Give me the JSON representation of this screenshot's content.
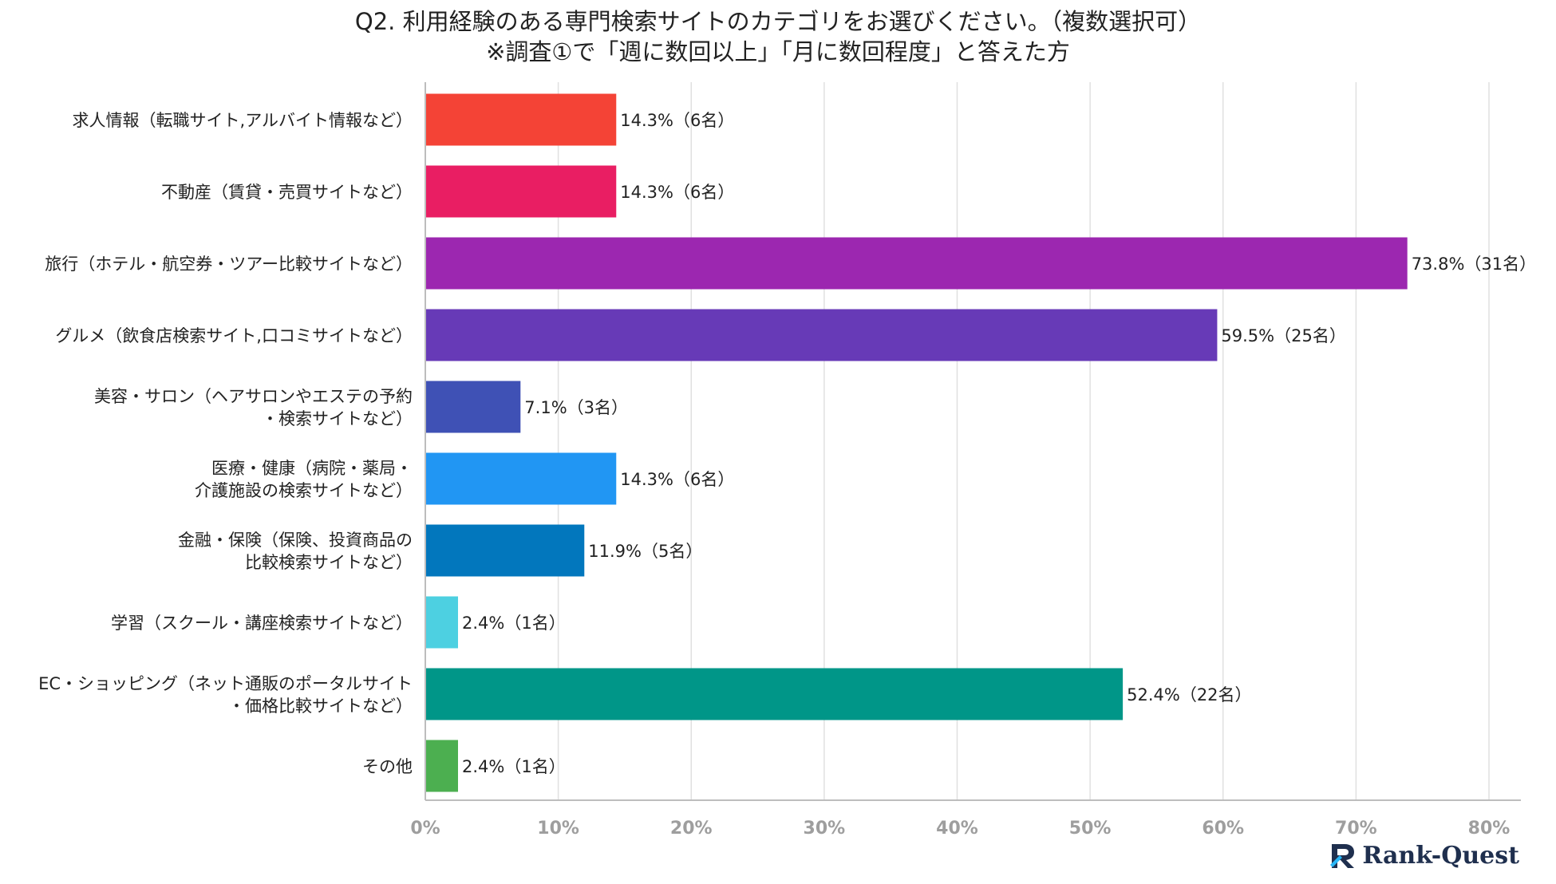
{
  "chart_data": {
    "type": "bar",
    "orientation": "horizontal",
    "title": "Q2. 利用経験のある専門検索サイトのカテゴリをお選びください。（複数選択可）",
    "subtitle": "※調査①で「週に数回以上」「月に数回程度」と答えた方",
    "categories": [
      [
        "求人情報（転職サイト,アルバイト情報など）"
      ],
      [
        "不動産（賃貸・売買サイトなど）"
      ],
      [
        "旅行（ホテル・航空券・ツアー比較サイトなど）"
      ],
      [
        "グルメ（飲食店検索サイト,口コミサイトなど）"
      ],
      [
        "美容・サロン（ヘアサロンやエステの予約",
        "・検索サイトなど）"
      ],
      [
        "医療・健康（病院・薬局・",
        "介護施設の検索サイトなど）"
      ],
      [
        "金融・保険（保険、投資商品の",
        "比較検索サイトなど）"
      ],
      [
        "学習（スクール・講座検索サイトなど）"
      ],
      [
        "EC・ショッピング（ネット通販のポータルサイト",
        "・価格比較サイトなど）"
      ],
      [
        "その他"
      ]
    ],
    "values": [
      14.3,
      14.3,
      73.8,
      59.5,
      7.1,
      14.3,
      11.9,
      2.4,
      52.4,
      2.4
    ],
    "data_labels": [
      "14.3%（6名）",
      "14.3%（6名）",
      "73.8%（31名）",
      "59.5%（25名）",
      "7.1%（3名）",
      "14.3%（6名）",
      "11.9%（5名）",
      "2.4%（1名）",
      "52.4%（22名）",
      "2.4%（1名）"
    ],
    "colors": [
      "#f44336",
      "#e91e63",
      "#9c27b0",
      "#673ab7",
      "#3f51b5",
      "#2196f3",
      "#0277bd",
      "#4dd0e1",
      "#009688",
      "#4caf50"
    ],
    "xlim": [
      0,
      80
    ],
    "xticks": [
      0,
      10,
      20,
      30,
      40,
      50,
      60,
      70,
      80
    ],
    "xtick_labels": [
      "0%",
      "10%",
      "20%",
      "30%",
      "40%",
      "50%",
      "60%",
      "70%",
      "80%"
    ],
    "grid": true,
    "xlabel": "",
    "ylabel": ""
  },
  "branding": {
    "logo_text": "Rank-Quest",
    "logo_icon": "rank-quest-r-icon",
    "logo_color": "#1f2f4e"
  },
  "colors": {
    "grid": "#e0e0e0",
    "axis": "#bdbdbd",
    "tick_text": "#9e9e9e"
  }
}
